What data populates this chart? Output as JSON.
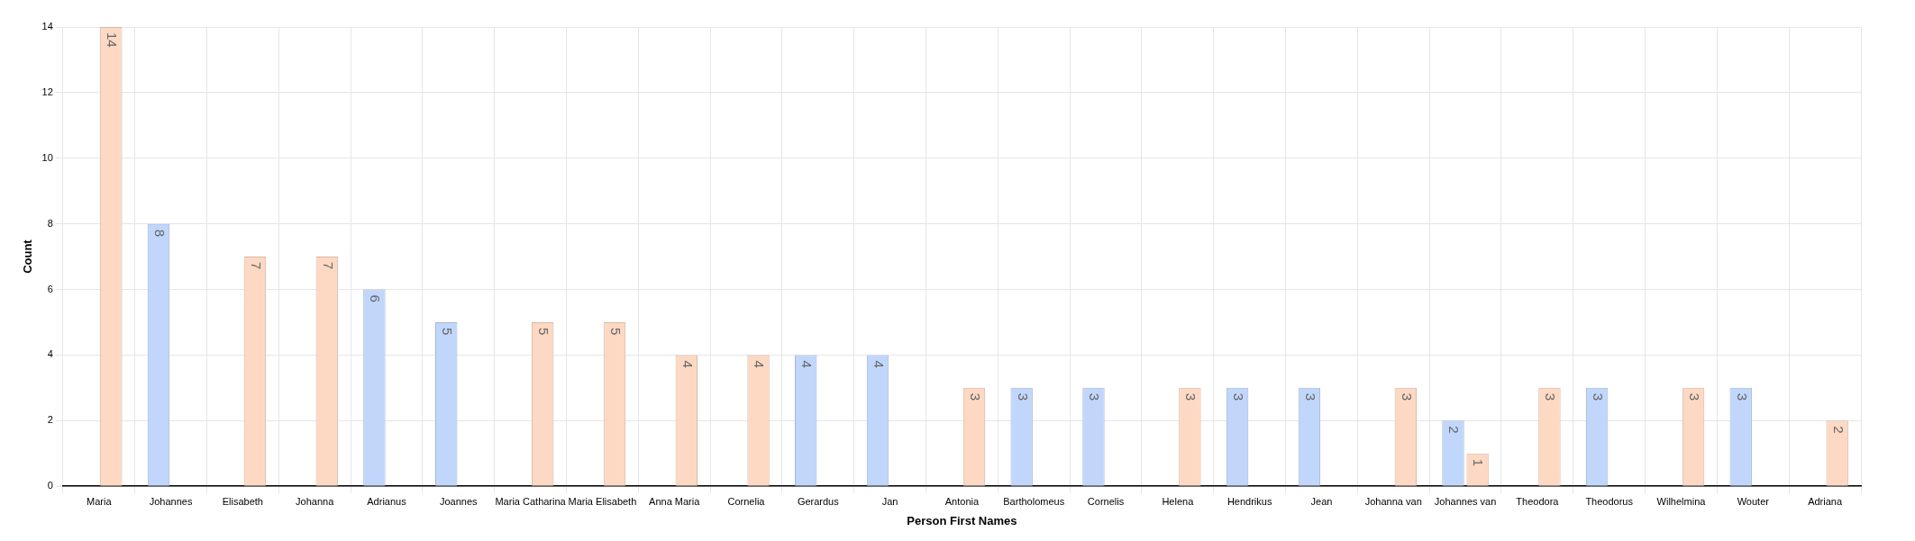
{
  "chart_data": {
    "type": "bar",
    "xlabel": "Person First Names",
    "ylabel": "Count",
    "categories": [
      "Maria",
      "Johannes",
      "Elisabeth",
      "Johanna",
      "Adrianus",
      "Joannes",
      "Maria Catharina",
      "Maria Elisabeth",
      "Anna Maria",
      "Cornelia",
      "Gerardus",
      "Jan",
      "Antonia",
      "Bartholomeus",
      "Cornelis",
      "Helena",
      "Hendrikus",
      "Jean",
      "Johanna van",
      "Johannes van",
      "Theodora",
      "Theodorus",
      "Wilhelmina",
      "Wouter",
      "Adriana"
    ],
    "series": [
      {
        "color": "#c1d6fb",
        "values": [
          null,
          8,
          null,
          null,
          6,
          5,
          null,
          null,
          null,
          null,
          4,
          4,
          null,
          3,
          3,
          null,
          3,
          3,
          null,
          2,
          null,
          3,
          null,
          3,
          null
        ]
      },
      {
        "color": "#fdd8c3",
        "values": [
          14,
          null,
          7,
          7,
          null,
          null,
          5,
          5,
          4,
          4,
          null,
          null,
          3,
          null,
          null,
          3,
          null,
          null,
          3,
          1,
          3,
          null,
          3,
          null,
          2
        ]
      }
    ],
    "ylim": [
      0,
      14
    ],
    "yticks": [
      0,
      2,
      4,
      6,
      8,
      10,
      12,
      14
    ],
    "grid": true,
    "legend": false,
    "data_labels": true
  }
}
